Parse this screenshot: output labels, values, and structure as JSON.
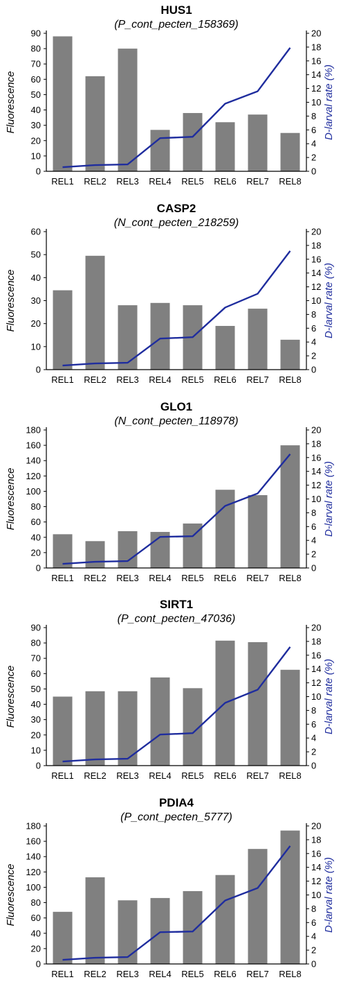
{
  "colors": {
    "bar": "#808080",
    "line": "#1f2d9e",
    "axis": "#000000"
  },
  "chart_data": [
    {
      "type": "bar",
      "title": "HUS1",
      "subtitle": "(P_cont_pecten_158369)",
      "ylabel": "Fluorescence",
      "y2label": "D-larval rate (%)",
      "categories": [
        "REL1",
        "REL2",
        "REL3",
        "REL4",
        "REL5",
        "REL6",
        "REL7",
        "REL8"
      ],
      "ylim": [
        0,
        90
      ],
      "yticks": [
        0,
        10,
        20,
        30,
        40,
        50,
        60,
        70,
        80,
        90
      ],
      "y2lim": [
        0,
        20
      ],
      "y2ticks": [
        0,
        2,
        4,
        6,
        8,
        10,
        12,
        14,
        16,
        18,
        20
      ],
      "series": [
        {
          "type": "bar",
          "axis": "left",
          "values": [
            88,
            62,
            80,
            27,
            38,
            32,
            37,
            25
          ]
        },
        {
          "type": "line",
          "axis": "right",
          "values": [
            0.6,
            0.9,
            1.0,
            4.8,
            5.0,
            9.8,
            11.6,
            17.9
          ]
        }
      ]
    },
    {
      "type": "bar",
      "title": "CASP2",
      "subtitle": "(N_cont_pecten_218259)",
      "ylabel": "Fluorescence",
      "y2label": "D-larval rate (%)",
      "categories": [
        "REL1",
        "REL2",
        "REL3",
        "REL4",
        "REL5",
        "REL6",
        "REL7",
        "REL8"
      ],
      "ylim": [
        0,
        60
      ],
      "yticks": [
        0,
        10,
        20,
        30,
        40,
        50,
        60
      ],
      "y2lim": [
        0,
        20
      ],
      "y2ticks": [
        0,
        2,
        4,
        6,
        8,
        10,
        12,
        14,
        16,
        18,
        20
      ],
      "series": [
        {
          "type": "bar",
          "axis": "left",
          "values": [
            34.5,
            49.5,
            28,
            29,
            28,
            19,
            26.5,
            13
          ]
        },
        {
          "type": "line",
          "axis": "right",
          "values": [
            0.6,
            0.9,
            1.0,
            4.5,
            4.7,
            9.0,
            11.0,
            17.2
          ]
        }
      ]
    },
    {
      "type": "bar",
      "title": "GLO1",
      "subtitle": "(N_cont_pecten_118978)",
      "ylabel": "Fluorescence",
      "y2label": "D-larval rate (%)",
      "categories": [
        "REL1",
        "REL2",
        "REL3",
        "REL4",
        "REL5",
        "REL6",
        "REL7",
        "REL8"
      ],
      "ylim": [
        0,
        180
      ],
      "yticks": [
        0,
        20,
        40,
        60,
        80,
        100,
        120,
        140,
        160,
        180
      ],
      "y2lim": [
        0,
        20
      ],
      "y2ticks": [
        0,
        2,
        4,
        6,
        8,
        10,
        12,
        14,
        16,
        18,
        20
      ],
      "series": [
        {
          "type": "bar",
          "axis": "left",
          "values": [
            44,
            35,
            48,
            47,
            58,
            102,
            95,
            160
          ]
        },
        {
          "type": "line",
          "axis": "right",
          "values": [
            0.6,
            0.9,
            1.0,
            4.5,
            4.6,
            9.0,
            10.8,
            16.5
          ]
        }
      ]
    },
    {
      "type": "bar",
      "title": "SIRT1",
      "subtitle": "(P_cont_pecten_47036)",
      "ylabel": "Fluorescence",
      "y2label": "D-larval rate (%)",
      "categories": [
        "REL1",
        "REL2",
        "REL3",
        "REL4",
        "REL5",
        "REL6",
        "REL7",
        "REL8"
      ],
      "ylim": [
        0,
        90
      ],
      "yticks": [
        0,
        10,
        20,
        30,
        40,
        50,
        60,
        70,
        80,
        90
      ],
      "y2lim": [
        0,
        20
      ],
      "y2ticks": [
        0,
        2,
        4,
        6,
        8,
        10,
        12,
        14,
        16,
        18,
        20
      ],
      "series": [
        {
          "type": "bar",
          "axis": "left",
          "values": [
            45,
            48.5,
            48.5,
            57.5,
            50.5,
            81.5,
            80.5,
            62.5
          ]
        },
        {
          "type": "line",
          "axis": "right",
          "values": [
            0.6,
            0.9,
            1.0,
            4.5,
            4.7,
            9.1,
            11.0,
            17.2
          ]
        }
      ]
    },
    {
      "type": "bar",
      "title": "PDIA4",
      "subtitle": "(P_cont_pecten_5777)",
      "ylabel": "Fluorescence",
      "y2label": "D-larval rate (%)",
      "categories": [
        "REL1",
        "REL2",
        "REL3",
        "REL4",
        "REL5",
        "REL6",
        "REL7",
        "REL8"
      ],
      "ylim": [
        0,
        180
      ],
      "yticks": [
        0,
        20,
        40,
        60,
        80,
        100,
        120,
        140,
        160,
        180
      ],
      "y2lim": [
        0,
        20
      ],
      "y2ticks": [
        0,
        2,
        4,
        6,
        8,
        10,
        12,
        14,
        16,
        18,
        20
      ],
      "series": [
        {
          "type": "bar",
          "axis": "left",
          "values": [
            68,
            113,
            83,
            86,
            95,
            116,
            150,
            174
          ]
        },
        {
          "type": "line",
          "axis": "right",
          "values": [
            0.6,
            0.9,
            1.0,
            4.6,
            4.7,
            9.2,
            11.0,
            17.1
          ]
        }
      ]
    }
  ]
}
